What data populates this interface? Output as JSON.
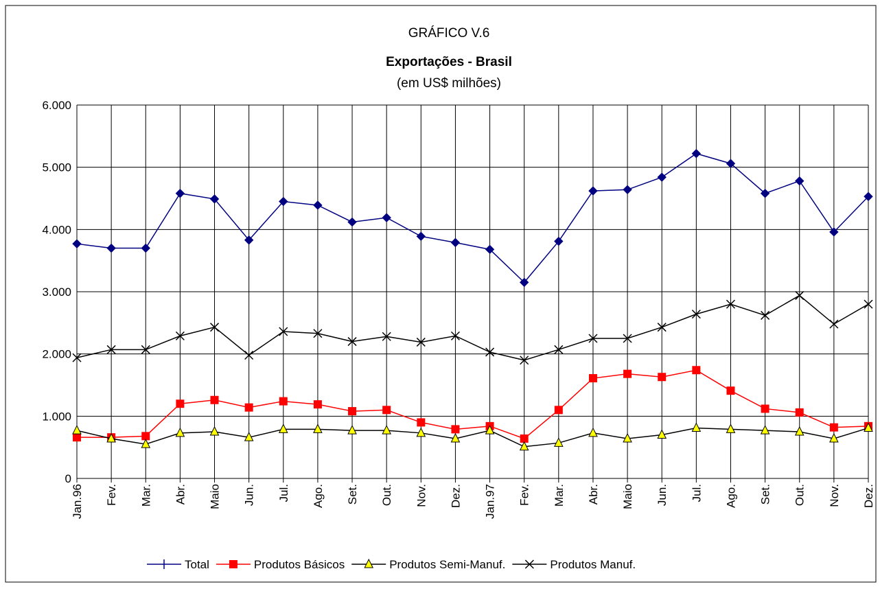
{
  "chart_data": {
    "type": "line",
    "title": "GRÁFICO V.6",
    "subtitle": "Exportações - Brasil",
    "y_label": "(em US$ milhões)",
    "categories": [
      "Jan.96",
      "Fev.",
      "Mar.",
      "Abr.",
      "Maio",
      "Jun.",
      "Jul.",
      "Ago.",
      "Set.",
      "Out.",
      "Nov.",
      "Dez.",
      "Jan.97",
      "Fev.",
      "Mar.",
      "Abr.",
      "Maio",
      "Jun.",
      "Jul.",
      "Ago.",
      "Set.",
      "Out.",
      "Nov.",
      "Dez."
    ],
    "ylim": [
      0,
      6000
    ],
    "yticks": [
      0,
      {
        "value": 1000,
        "label": "1.000"
      },
      {
        "value": 2000,
        "label": "2.000"
      },
      {
        "value": 3000,
        "label": "3.000"
      },
      {
        "value": 4000,
        "label": "4.000"
      },
      {
        "value": 5000,
        "label": "5.000"
      },
      {
        "value": 6000,
        "label": "6.000"
      }
    ],
    "grid": true,
    "legend": "bottom",
    "series": [
      {
        "name": "Total",
        "color": "#000080",
        "marker": "diamond",
        "values": [
          3770,
          3700,
          3700,
          4580,
          4490,
          3830,
          4450,
          4390,
          4120,
          4190,
          3890,
          3790,
          3680,
          3150,
          3810,
          4620,
          4640,
          4840,
          5220,
          5060,
          4580,
          4780,
          3960,
          4530
        ]
      },
      {
        "name": "Produtos Básicos",
        "color": "#ff0000",
        "marker": "square",
        "values": [
          660,
          660,
          680,
          1200,
          1260,
          1140,
          1240,
          1190,
          1080,
          1100,
          900,
          790,
          840,
          640,
          1100,
          1610,
          1680,
          1630,
          1740,
          1410,
          1120,
          1060,
          820,
          840
        ]
      },
      {
        "name": "Produtos Semi-Manuf.",
        "color": "#000000",
        "marker": "triangle",
        "values": [
          770,
          640,
          550,
          730,
          750,
          660,
          790,
          790,
          770,
          770,
          730,
          640,
          770,
          510,
          570,
          730,
          640,
          700,
          810,
          790,
          770,
          750,
          640,
          810
        ]
      },
      {
        "name": "Produtos Manuf.",
        "color": "#000000",
        "marker": "x",
        "values": [
          1940,
          2070,
          2070,
          2290,
          2430,
          1980,
          2360,
          2330,
          2200,
          2280,
          2190,
          2290,
          2030,
          1900,
          2070,
          2250,
          2250,
          2430,
          2640,
          2800,
          2620,
          2940,
          2480,
          2800
        ]
      }
    ]
  }
}
